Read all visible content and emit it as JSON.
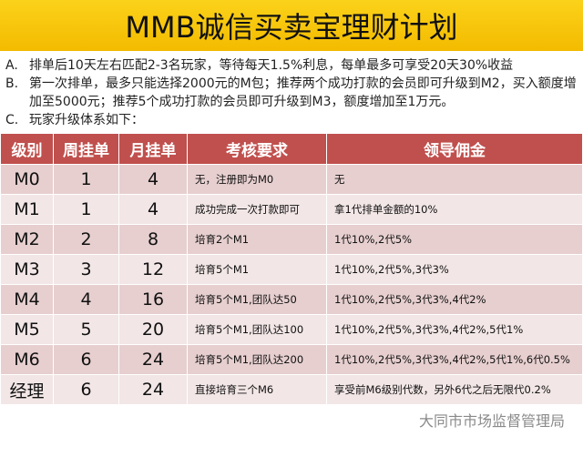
{
  "title": "MMB诚信买卖宝理财计划",
  "intro": [
    {
      "k": "A.",
      "t": "排单后10天左右匹配2-3名玩家，等待每天1.5%利息，每单最多可享受20天30%收益"
    },
    {
      "k": "B.",
      "t": "第一次排单，最多只能选择2000元的M包；推荐两个成功打款的会员即可升级到M2，买入额度增加至5000元；推荐5个成功打款的会员即可升级到M3，额度增加至1万元。"
    },
    {
      "k": "C.",
      "t": "玩家升级体系如下："
    }
  ],
  "headers": [
    "级别",
    "周挂单",
    "月挂单",
    "考核要求",
    "领导佣金"
  ],
  "rows": [
    [
      "M0",
      "1",
      "4",
      "无，注册即为M0",
      "无"
    ],
    [
      "M1",
      "1",
      "4",
      "成功完成一次打款即可",
      "拿1代排单金额的10%"
    ],
    [
      "M2",
      "2",
      "8",
      "培育2个M1",
      "1代10%,2代5%"
    ],
    [
      "M3",
      "3",
      "12",
      "培育5个M1",
      "1代10%,2代5%,3代3%"
    ],
    [
      "M4",
      "4",
      "16",
      "培育5个M1,团队达50",
      "1代10%,2代5%,3代3%,4代2%"
    ],
    [
      "M5",
      "5",
      "20",
      "培育5个M1,团队达100",
      "1代10%,2代5%,3代3%,4代2%,5代1%"
    ],
    [
      "M6",
      "6",
      "24",
      "培育5个M1,团队达200",
      "1代10%,2代5%,3代3%,4代2%,5代1%,6代0.5%"
    ],
    [
      "经理",
      "6",
      "24",
      "直接培育三个M6",
      "享受前M6级别代数，另外6代之后无限代0.2%"
    ]
  ],
  "watermark": "大同市市场监督管理局"
}
